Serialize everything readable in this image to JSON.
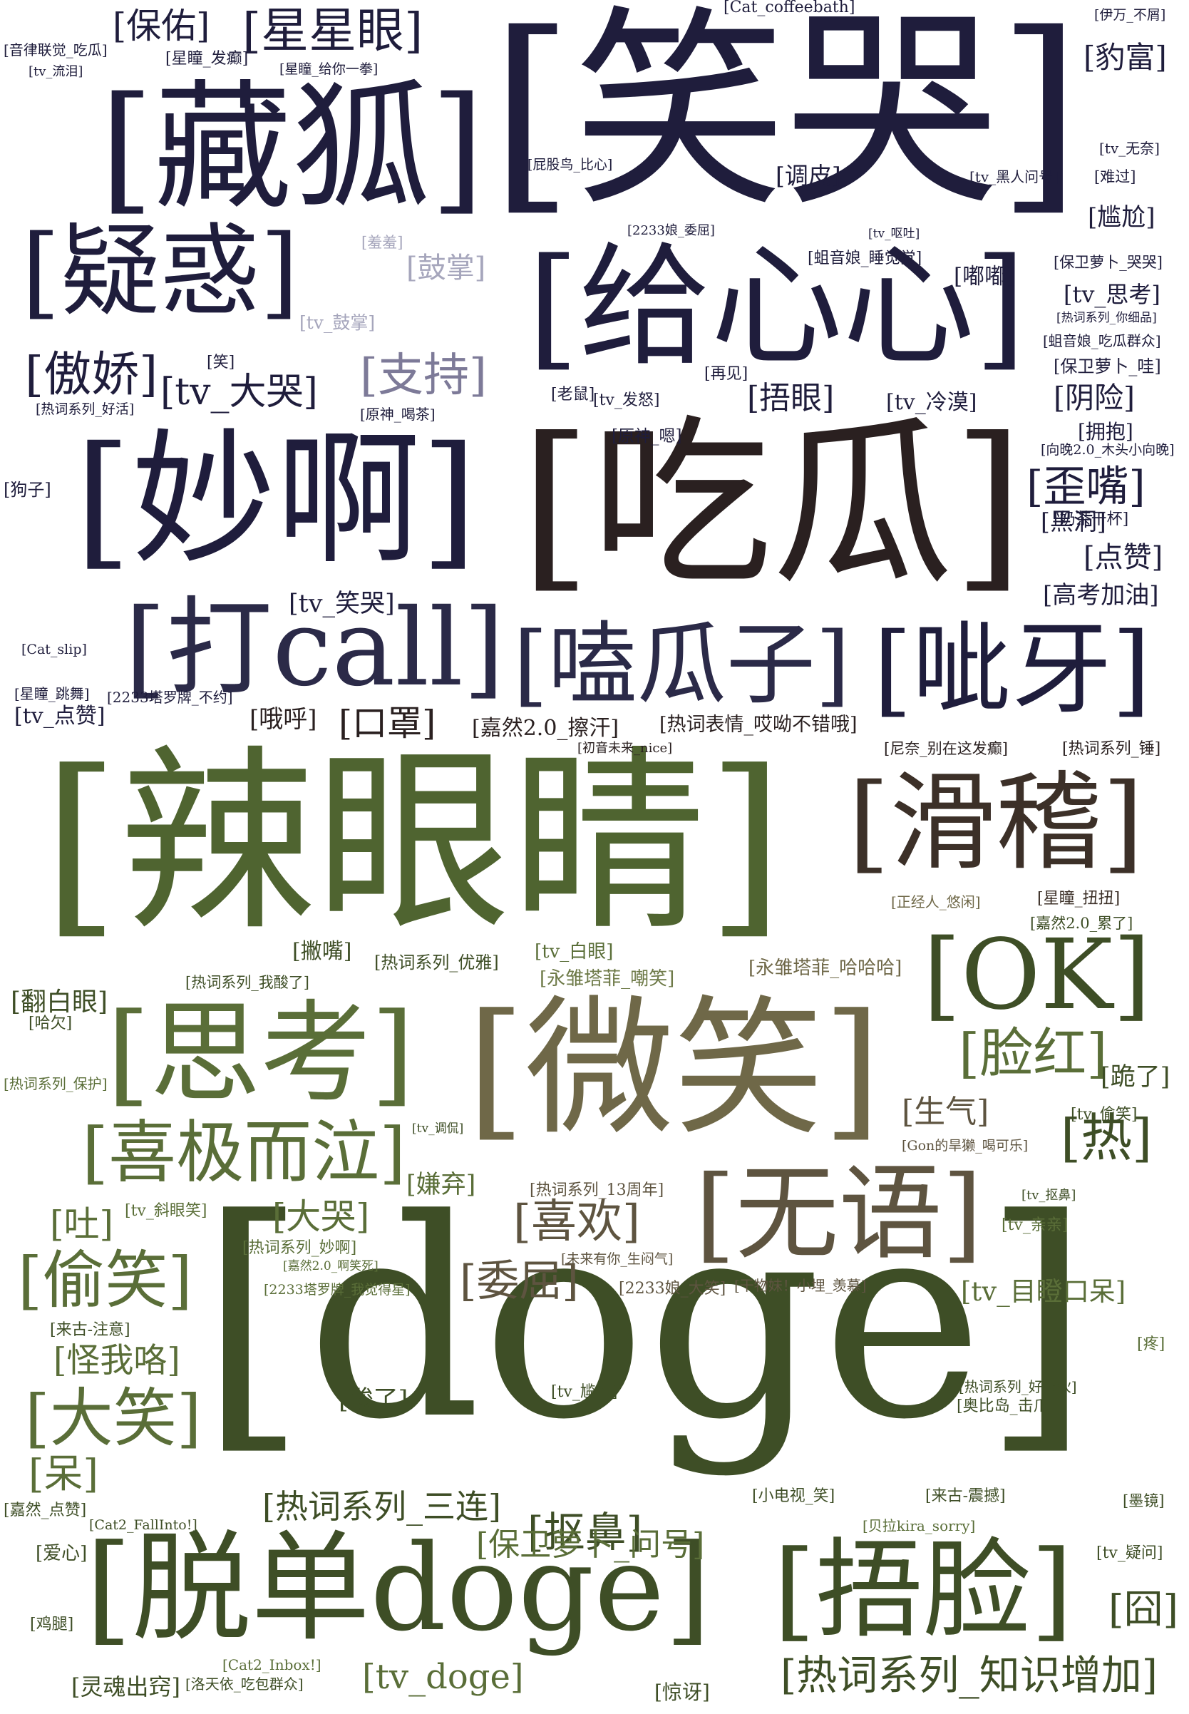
{
  "palette": {
    "navy": "#1f1d3c",
    "navy_mid": "#2b2a48",
    "dark_brown": "#2a2020",
    "brown": "#3c3028",
    "taupe": "#5e5440",
    "khaki": "#6f6848",
    "olive": "#4f6430",
    "olive_dark": "#3e4e26",
    "olive_green": "#5a6e38",
    "sage": "#6e7a48",
    "lavender": "#7d7a98",
    "pale_lavender": "#a6a6bc"
  },
  "words": [
    {
      "text": "[笑哭]",
      "c": "navy"
    },
    {
      "text": "[藏狐]",
      "c": "navy"
    },
    {
      "text": "[疑惑]",
      "c": "navy"
    },
    {
      "text": "[给心心]",
      "c": "navy"
    },
    {
      "text": "[妙啊]",
      "c": "navy"
    },
    {
      "text": "[吃瓜]",
      "c": "dark_brown"
    },
    {
      "text": "[打call]",
      "c": "navy_mid"
    },
    {
      "text": "[嗑瓜子]",
      "c": "navy_mid"
    },
    {
      "text": "[呲牙]",
      "c": "navy"
    },
    {
      "text": "[辣眼睛]",
      "c": "olive"
    },
    {
      "text": "[滑稽]",
      "c": "brown"
    },
    {
      "text": "[OK]",
      "c": "olive_dark"
    },
    {
      "text": "[思考]",
      "c": "olive_green"
    },
    {
      "text": "[微笑]",
      "c": "khaki"
    },
    {
      "text": "[喜极而泣]",
      "c": "olive_green"
    },
    {
      "text": "[无语]",
      "c": "taupe"
    },
    {
      "text": "[doge]",
      "c": "olive_dark"
    },
    {
      "text": "[脱单doge]",
      "c": "olive_dark"
    },
    {
      "text": "[捂脸]",
      "c": "olive_dark"
    },
    {
      "text": "[保佑]",
      "c": "navy"
    },
    {
      "text": "[星星眼]",
      "c": "navy"
    },
    {
      "text": "[豹富]",
      "c": "navy"
    },
    {
      "text": "[调皮]",
      "c": "navy"
    },
    {
      "text": "[尴尬]",
      "c": "navy"
    },
    {
      "text": "[鼓掌]",
      "c": "pale_lavender"
    },
    {
      "text": "[嘟嘟]",
      "c": "navy"
    },
    {
      "text": "[tv_思考]",
      "c": "navy"
    },
    {
      "text": "[傲娇]",
      "c": "navy"
    },
    {
      "text": "[tv_大哭]",
      "c": "navy"
    },
    {
      "text": "[支持]",
      "c": "lavender"
    },
    {
      "text": "[捂眼]",
      "c": "navy"
    },
    {
      "text": "[tv_冷漠]",
      "c": "navy"
    },
    {
      "text": "[阴险]",
      "c": "navy"
    },
    {
      "text": "[保卫萝卜_哇]",
      "c": "navy"
    },
    {
      "text": "[拥抱]",
      "c": "navy"
    },
    {
      "text": "[歪嘴]",
      "c": "navy"
    },
    {
      "text": "[黑洞]",
      "c": "navy"
    },
    {
      "text": "[点赞]",
      "c": "navy"
    },
    {
      "text": "[高考加油]",
      "c": "navy"
    },
    {
      "text": "[tv_笑哭]",
      "c": "navy"
    },
    {
      "text": "[tv_点赞]",
      "c": "navy"
    },
    {
      "text": "[哦呼]",
      "c": "dark_brown"
    },
    {
      "text": "[口罩]",
      "c": "dark_brown"
    },
    {
      "text": "[嘉然2.0_擦汗]",
      "c": "dark_brown"
    },
    {
      "text": "[热词表情_哎呦不错哦]",
      "c": "dark_brown"
    },
    {
      "text": "[撇嘴]",
      "c": "olive_dark"
    },
    {
      "text": "[热词系列_优雅]",
      "c": "olive_dark"
    },
    {
      "text": "[tv_白眼]",
      "c": "olive_green"
    },
    {
      "text": "[永雏塔菲_嘲笑]",
      "c": "sage"
    },
    {
      "text": "[永雏塔菲_哈哈哈]",
      "c": "khaki"
    },
    {
      "text": "[翻白眼]",
      "c": "olive_dark"
    },
    {
      "text": "[脸红]",
      "c": "olive_green"
    },
    {
      "text": "[跪了]",
      "c": "olive_dark"
    },
    {
      "text": "[生气]",
      "c": "taupe"
    },
    {
      "text": "[热]",
      "c": "olive_dark"
    },
    {
      "text": "[嫌弃]",
      "c": "olive_green"
    },
    {
      "text": "[大哭]",
      "c": "olive_green"
    },
    {
      "text": "[喜欢]",
      "c": "taupe"
    },
    {
      "text": "[吐]",
      "c": "olive_green"
    },
    {
      "text": "[偷笑]",
      "c": "olive_green"
    },
    {
      "text": "[委屈]",
      "c": "taupe"
    },
    {
      "text": "[tv_目瞪口呆]",
      "c": "olive_green"
    },
    {
      "text": "[怪我咯]",
      "c": "olive_green"
    },
    {
      "text": "[大笑]",
      "c": "olive_green"
    },
    {
      "text": "[酸了]",
      "c": "olive_dark"
    },
    {
      "text": "[呆]",
      "c": "olive_green"
    },
    {
      "text": "[热词系列_三连]",
      "c": "olive_dark"
    },
    {
      "text": "[抠鼻]",
      "c": "olive_dark"
    },
    {
      "text": "[保卫萝卜_问号]",
      "c": "olive_green"
    },
    {
      "text": "[爱心]",
      "c": "olive_dark"
    },
    {
      "text": "[囧]",
      "c": "olive_dark"
    },
    {
      "text": "[tv_doge]",
      "c": "olive_green"
    },
    {
      "text": "[灵魂出窍]",
      "c": "olive_dark"
    },
    {
      "text": "[惊讶]",
      "c": "olive_dark"
    },
    {
      "text": "[热词系列_知识增加]",
      "c": "olive_dark"
    },
    {
      "text": "[Cat_coffeebath]",
      "c": "navy"
    },
    {
      "text": "[伊万_不屑]",
      "c": "navy"
    },
    {
      "text": "[音律联觉_吃瓜]",
      "c": "navy"
    },
    {
      "text": "[星瞳_发癫]",
      "c": "navy"
    },
    {
      "text": "[tv_流泪]",
      "c": "navy"
    },
    {
      "text": "[星瞳_给你一拳]",
      "c": "navy"
    },
    {
      "text": "[屁股鸟_比心]",
      "c": "navy"
    },
    {
      "text": "[tv_无奈]",
      "c": "navy"
    },
    {
      "text": "[tv_黑人问号]",
      "c": "navy"
    },
    {
      "text": "[难过]",
      "c": "navy"
    },
    {
      "text": "[2233娘_委屈]",
      "c": "navy"
    },
    {
      "text": "[tv_呕吐]",
      "c": "navy"
    },
    {
      "text": "[羞羞]",
      "c": "pale_lavender"
    },
    {
      "text": "[蛆音娘_睡觉觉]",
      "c": "navy"
    },
    {
      "text": "[保卫萝卜_哭哭]",
      "c": "navy"
    },
    {
      "text": "[tv_鼓掌]",
      "c": "pale_lavender"
    },
    {
      "text": "[热词系列_你细品]",
      "c": "navy"
    },
    {
      "text": "[蛆音娘_吃瓜群众]",
      "c": "navy"
    },
    {
      "text": "[笑]",
      "c": "navy"
    },
    {
      "text": "[再见]",
      "c": "navy"
    },
    {
      "text": "[老鼠]",
      "c": "navy"
    },
    {
      "text": "[tv_发怒]",
      "c": "navy"
    },
    {
      "text": "[热词系列_好活]",
      "c": "navy"
    },
    {
      "text": "[原神_喝茶]",
      "c": "navy"
    },
    {
      "text": "[原神_嗯]",
      "c": "navy"
    },
    {
      "text": "[向晚2.0_木头小向晚]",
      "c": "navy"
    },
    {
      "text": "[狗子]",
      "c": "navy"
    },
    {
      "text": "[奶茶干杯]",
      "c": "navy"
    },
    {
      "text": "[Cat_slip]",
      "c": "navy"
    },
    {
      "text": "[星瞳_跳舞]",
      "c": "navy"
    },
    {
      "text": "[2233塔罗牌_不约]",
      "c": "navy"
    },
    {
      "text": "[初音未来_nice]",
      "c": "dark_brown"
    },
    {
      "text": "[尼奈_别在这发癫]",
      "c": "dark_brown"
    },
    {
      "text": "[热词系列_锤]",
      "c": "dark_brown"
    },
    {
      "text": "[正经人_悠闲]",
      "c": "khaki"
    },
    {
      "text": "[星瞳_扭扭]",
      "c": "brown"
    },
    {
      "text": "[嘉然2.0_累了]",
      "c": "olive_dark"
    },
    {
      "text": "[热词系列_我酸了]",
      "c": "olive_dark"
    },
    {
      "text": "[哈欠]",
      "c": "olive_dark"
    },
    {
      "text": "[热词系列_保护]",
      "c": "olive_green"
    },
    {
      "text": "[tv_调侃]",
      "c": "olive_dark"
    },
    {
      "text": "[tv_偷笑]",
      "c": "olive_dark"
    },
    {
      "text": "[Gon的旱獭_喝可乐]",
      "c": "taupe"
    },
    {
      "text": "[tv_斜眼笑]",
      "c": "olive_green"
    },
    {
      "text": "[热词系列_13周年]",
      "c": "taupe"
    },
    {
      "text": "[tv_抠鼻]",
      "c": "olive_dark"
    },
    {
      "text": "[tv_亲亲]",
      "c": "olive_green"
    },
    {
      "text": "[热词系列_妙啊]",
      "c": "olive_green"
    },
    {
      "text": "[嘉然2.0_啊笑死]",
      "c": "olive_green"
    },
    {
      "text": "[未来有你_生闷气]",
      "c": "taupe"
    },
    {
      "text": "[2233塔罗牌_我觉得星]",
      "c": "olive_green"
    },
    {
      "text": "[干物妹！小埋_羡慕]",
      "c": "taupe"
    },
    {
      "text": "[2233娘_大笑]",
      "c": "taupe"
    },
    {
      "text": "[来古-注意]",
      "c": "olive_dark"
    },
    {
      "text": "[疼]",
      "c": "olive_green"
    },
    {
      "text": "[tv_尴尬]",
      "c": "olive_dark"
    },
    {
      "text": "[热词系列_好家伙]",
      "c": "olive_dark"
    },
    {
      "text": "[奥比岛_击爪]",
      "c": "olive_dark"
    },
    {
      "text": "[嘉然_点赞]",
      "c": "olive_dark"
    },
    {
      "text": "[Cat2_FallInto!]",
      "c": "olive_dark"
    },
    {
      "text": "[小电视_笑]",
      "c": "olive_dark"
    },
    {
      "text": "[来古-震撼]",
      "c": "olive_dark"
    },
    {
      "text": "[墨镜]",
      "c": "olive_dark"
    },
    {
      "text": "[贝拉kira_sorry]",
      "c": "olive_green"
    },
    {
      "text": "[tv_疑问]",
      "c": "olive_dark"
    },
    {
      "text": "[鸡腿]",
      "c": "olive_dark"
    },
    {
      "text": "[Cat2_Inbox!]",
      "c": "olive_green"
    },
    {
      "text": "[洛天依_吃包群众]",
      "c": "olive_dark"
    }
  ]
}
